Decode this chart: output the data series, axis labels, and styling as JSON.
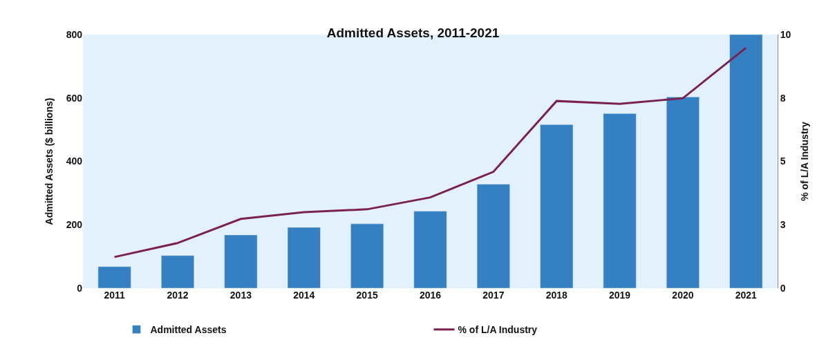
{
  "chart_data": {
    "type": "bar",
    "title": "Admitted Assets, 2011-2021",
    "ylabel": "Admitted Assets ($ billions)",
    "y2label": "% of L/A Industry",
    "categories": [
      "2011",
      "2012",
      "2013",
      "2014",
      "2015",
      "2016",
      "2017",
      "2018",
      "2019",
      "2020",
      "2021"
    ],
    "series": [
      {
        "name": "Admitted Assets",
        "color": "#3580c2",
        "values": [
          68,
          103,
          168,
          192,
          203,
          243,
          328,
          516,
          551,
          603,
          800
        ]
      },
      {
        "name": "% of L/A Industry",
        "type": "line",
        "axis": "y2",
        "color": "#7a2150",
        "values": [
          1.23,
          1.78,
          2.73,
          3.0,
          3.11,
          3.58,
          4.59,
          7.38,
          7.27,
          7.49,
          9.48
        ]
      }
    ],
    "ylim": [
      0,
      800
    ],
    "yticks": [
      0,
      200,
      400,
      600,
      800
    ],
    "y2lim": [
      0,
      10
    ],
    "y2ticks": [
      0,
      {
        "value": 2.5,
        "label": "3"
      },
      5,
      {
        "value": 7.5,
        "label": "8"
      },
      10
    ],
    "grid": false,
    "legend": "bottom",
    "marker": "none",
    "line_style": "solid"
  }
}
